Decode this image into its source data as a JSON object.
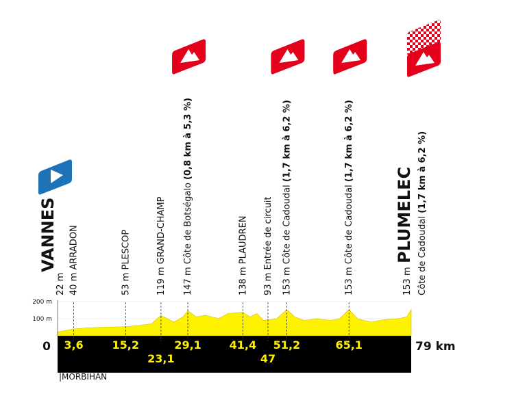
{
  "chart_data": {
    "type": "profile",
    "region": "|MORBIHAN",
    "xlim": [
      0,
      79
    ],
    "ylim": [
      0,
      200
    ],
    "yticks": [
      {
        "value": 100,
        "label": "100 m"
      },
      {
        "value": 200,
        "label": "200 m"
      }
    ],
    "xticks": [
      {
        "value": 0,
        "label": "0"
      },
      {
        "value": 3.6,
        "label": "3,6"
      },
      {
        "value": 15.2,
        "label": "15,2"
      },
      {
        "value": 23.1,
        "label": "23,1"
      },
      {
        "value": 29.1,
        "label": "29,1"
      },
      {
        "value": 41.4,
        "label": "41,4"
      },
      {
        "value": 47,
        "label": "47"
      },
      {
        "value": 51.2,
        "label": "51,2"
      },
      {
        "value": 65.1,
        "label": "65,1"
      },
      {
        "value": 79,
        "label": "79 km"
      }
    ],
    "profile": {
      "color": "#fff200",
      "x": [
        0,
        3.6,
        6,
        10,
        15.2,
        18,
        21,
        23.1,
        24.5,
        26,
        28,
        29.1,
        31,
        33,
        36,
        38,
        41.4,
        43,
        44.5,
        46,
        47,
        49,
        51.2,
        53,
        55,
        58,
        61,
        63,
        65.1,
        67,
        70,
        73,
        76,
        78,
        79
      ],
      "values": [
        22,
        40,
        45,
        50,
        53,
        60,
        70,
        119,
        100,
        80,
        110,
        147,
        110,
        120,
        100,
        130,
        138,
        110,
        130,
        90,
        93,
        100,
        153,
        110,
        90,
        100,
        90,
        100,
        153,
        100,
        80,
        95,
        100,
        110,
        153
      ]
    },
    "waypoints": [
      {
        "km": 0,
        "altitude": {
          "value": 22,
          "label": "22 m"
        },
        "name": "VANNES",
        "kind": "start"
      },
      {
        "km": 3.6,
        "altitude": {
          "value": 40,
          "label": "40 m"
        },
        "name": "ARRADON"
      },
      {
        "km": 15.2,
        "altitude": {
          "value": 53,
          "label": "53 m"
        },
        "name": "PLESCOP"
      },
      {
        "km": 23.1,
        "altitude": {
          "value": 119,
          "label": "119 m"
        },
        "name": "GRAND-CHAMP"
      },
      {
        "km": 29.1,
        "altitude": {
          "value": 147,
          "label": "147 m"
        },
        "name": "Côte de Botségalo",
        "detail": "(0,8 km à 5,3 %)",
        "kind": "climb"
      },
      {
        "km": 41.4,
        "altitude": {
          "value": 138,
          "label": "138 m"
        },
        "name": "PLAUDREN"
      },
      {
        "km": 47,
        "altitude": {
          "value": 93,
          "label": "93 m"
        },
        "name": "Entrée de circuit"
      },
      {
        "km": 51.2,
        "altitude": {
          "value": 153,
          "label": "153 m"
        },
        "name": "Côte de Cadoudal",
        "detail": "(1,7 km à 6,2 %)",
        "kind": "climb"
      },
      {
        "km": 65.1,
        "altitude": {
          "value": 153,
          "label": "153 m"
        },
        "name": "Côte de Cadoudal",
        "detail": "(1,7 km à 6,2 %)",
        "kind": "climb"
      },
      {
        "km": 79,
        "altitude": {
          "value": 153,
          "label": "153 m"
        },
        "name": "PLUMELEC",
        "sub": "Côte de Cadoudal",
        "detail": "(1,7 km à 6,2 %)",
        "kind": "finish"
      }
    ]
  }
}
